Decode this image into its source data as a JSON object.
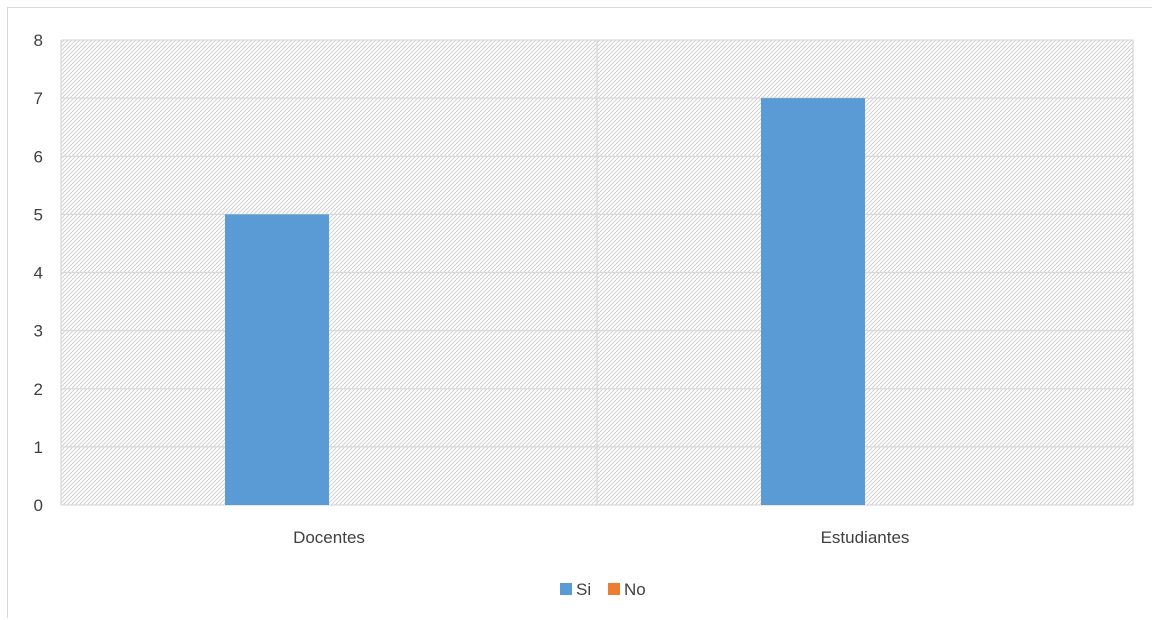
{
  "chart_data": {
    "type": "bar",
    "categories": [
      "Docentes",
      "Estudiantes"
    ],
    "series": [
      {
        "name": "Si",
        "values": [
          5,
          7
        ],
        "color": "#5b9bd5"
      },
      {
        "name": "No",
        "values": [
          0,
          0
        ],
        "color": "#ed7d31"
      }
    ],
    "ylim": [
      0,
      8
    ],
    "yticks": [
      "0",
      "1",
      "2",
      "3",
      "4",
      "5",
      "6",
      "7",
      "8"
    ],
    "grid": true,
    "plot_background": "hatched-diagonal-gray",
    "legend_position": "bottom"
  }
}
